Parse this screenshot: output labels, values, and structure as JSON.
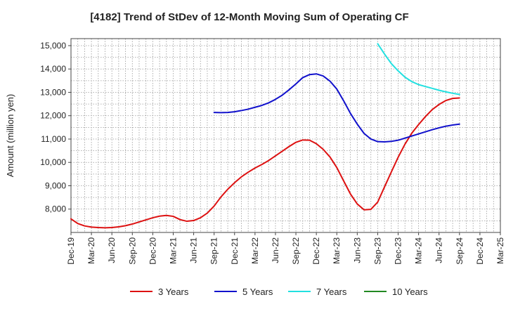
{
  "chart_data": {
    "type": "line",
    "title": "[4182]  Trend of StDev of 12-Month Moving Sum of Operating CF",
    "ylabel": "Amount (million yen)",
    "xlabel": "",
    "ylim": [
      7000,
      15300
    ],
    "yticks": [
      8000,
      9000,
      10000,
      11000,
      12000,
      13000,
      14000,
      15000
    ],
    "ytick_labels": [
      "8,000",
      "9,000",
      "10,000",
      "11,000",
      "12,000",
      "13,000",
      "14,000",
      "15,000"
    ],
    "xticks": [
      "2019-12",
      "2020-03",
      "2020-06",
      "2020-09",
      "2020-12",
      "2021-03",
      "2021-06",
      "2021-09",
      "2021-12",
      "2022-03",
      "2022-06",
      "2022-09",
      "2022-12",
      "2023-03",
      "2023-06",
      "2023-09",
      "2023-12",
      "2024-03",
      "2024-06",
      "2024-09",
      "2024-12",
      "2025-03"
    ],
    "xtick_labels": [
      "Dec-19",
      "Mar-20",
      "Jun-20",
      "Sep-20",
      "Dec-20",
      "Mar-21",
      "Jun-21",
      "Sep-21",
      "Dec-21",
      "Mar-22",
      "Jun-22",
      "Sep-22",
      "Dec-22",
      "Mar-23",
      "Jun-23",
      "Sep-23",
      "Dec-23",
      "Mar-24",
      "Jun-24",
      "Sep-24",
      "Dec-24",
      "Mar-25"
    ],
    "grid": true,
    "legend_position": "bottom",
    "series": [
      {
        "name": "3 Years",
        "color": "#dd1111",
        "x": [
          "2019-12",
          "2020-01",
          "2020-02",
          "2020-03",
          "2020-04",
          "2020-05",
          "2020-06",
          "2020-07",
          "2020-08",
          "2020-09",
          "2020-10",
          "2020-11",
          "2020-12",
          "2021-01",
          "2021-02",
          "2021-03",
          "2021-04",
          "2021-05",
          "2021-06",
          "2021-07",
          "2021-08",
          "2021-09",
          "2021-10",
          "2021-11",
          "2021-12",
          "2022-01",
          "2022-02",
          "2022-03",
          "2022-04",
          "2022-05",
          "2022-06",
          "2022-07",
          "2022-08",
          "2022-09",
          "2022-10",
          "2022-11",
          "2022-12",
          "2023-01",
          "2023-02",
          "2023-03",
          "2023-04",
          "2023-05",
          "2023-06",
          "2023-07",
          "2023-08",
          "2023-09",
          "2023-10",
          "2023-11",
          "2023-12",
          "2024-01",
          "2024-02",
          "2024-03",
          "2024-04",
          "2024-05",
          "2024-06",
          "2024-07",
          "2024-08",
          "2024-09"
        ],
        "y": [
          7580,
          7380,
          7280,
          7230,
          7210,
          7200,
          7210,
          7240,
          7290,
          7360,
          7450,
          7540,
          7630,
          7700,
          7730,
          7690,
          7550,
          7480,
          7510,
          7630,
          7830,
          8130,
          8520,
          8850,
          9130,
          9380,
          9580,
          9760,
          9910,
          10080,
          10280,
          10480,
          10680,
          10860,
          10960,
          10950,
          10800,
          10560,
          10230,
          9780,
          9210,
          8650,
          8220,
          7970,
          7990,
          8300,
          8950,
          9590,
          10220,
          10780,
          11250,
          11620,
          11960,
          12260,
          12480,
          12650,
          12740,
          12760
        ]
      },
      {
        "name": "5 Years",
        "color": "#1111cc",
        "x": [
          "2021-09",
          "2021-10",
          "2021-11",
          "2021-12",
          "2022-01",
          "2022-02",
          "2022-03",
          "2022-04",
          "2022-05",
          "2022-06",
          "2022-07",
          "2022-08",
          "2022-09",
          "2022-10",
          "2022-11",
          "2022-12",
          "2023-01",
          "2023-02",
          "2023-03",
          "2023-04",
          "2023-05",
          "2023-06",
          "2023-07",
          "2023-08",
          "2023-09",
          "2023-10",
          "2023-11",
          "2023-12",
          "2024-01",
          "2024-02",
          "2024-03",
          "2024-04",
          "2024-05",
          "2024-06",
          "2024-07",
          "2024-08",
          "2024-09"
        ],
        "y": [
          12140,
          12130,
          12140,
          12170,
          12220,
          12280,
          12360,
          12440,
          12550,
          12700,
          12880,
          13110,
          13360,
          13630,
          13760,
          13790,
          13700,
          13480,
          13140,
          12640,
          12100,
          11640,
          11240,
          11000,
          10890,
          10880,
          10900,
          10950,
          11040,
          11130,
          11220,
          11310,
          11400,
          11480,
          11550,
          11600,
          11640
        ]
      },
      {
        "name": "7 Years",
        "color": "#22e0e0",
        "x": [
          "2023-09",
          "2023-10",
          "2023-11",
          "2023-12",
          "2024-01",
          "2024-02",
          "2024-03",
          "2024-04",
          "2024-05",
          "2024-06",
          "2024-07",
          "2024-08",
          "2024-09"
        ],
        "y": [
          15080,
          14640,
          14230,
          13920,
          13650,
          13460,
          13330,
          13250,
          13170,
          13090,
          13020,
          12960,
          12910
        ]
      },
      {
        "name": "10 Years",
        "color": "#228822",
        "x": [],
        "y": []
      }
    ]
  }
}
